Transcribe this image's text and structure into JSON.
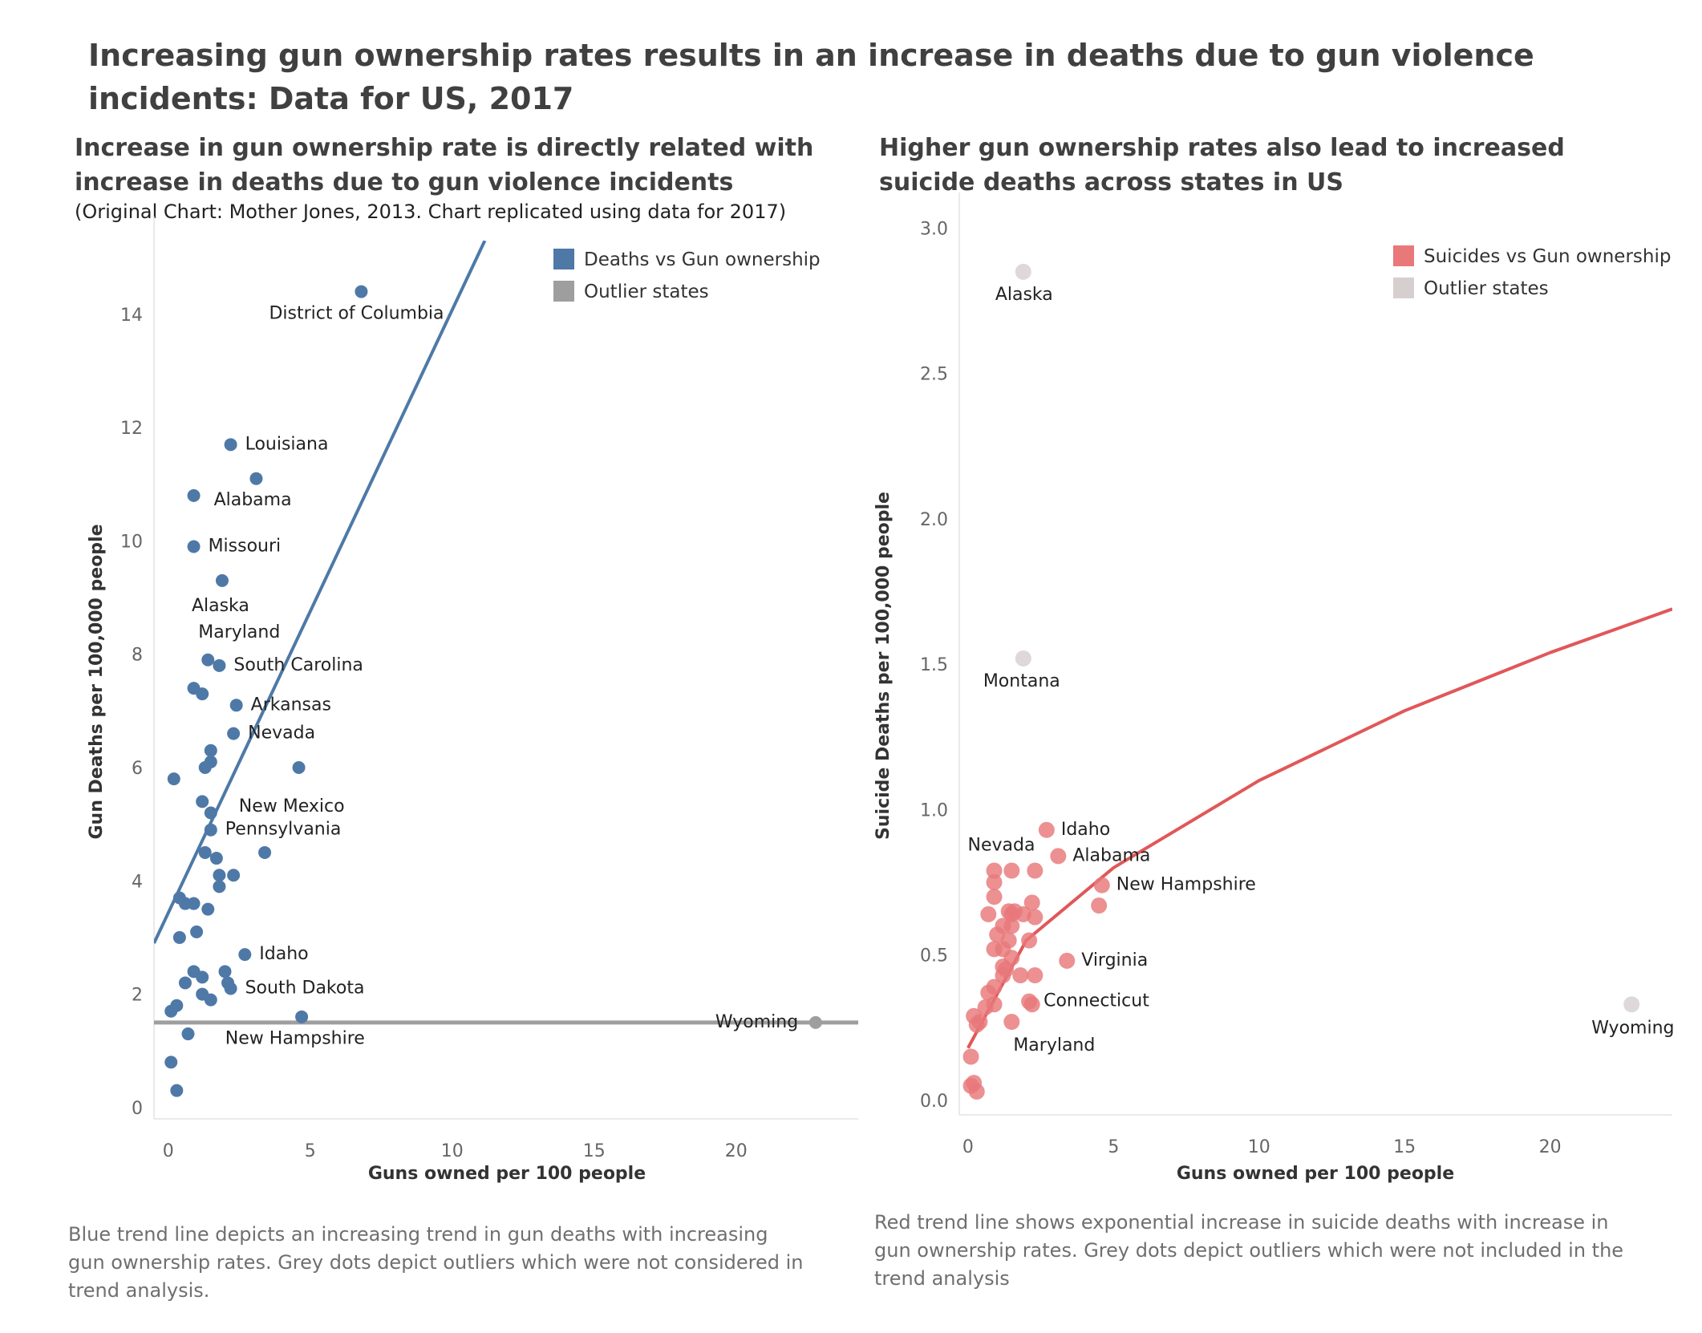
{
  "title": "Increasing gun ownership rates results in an increase in deaths due to gun violence incidents: Data for US, 2017",
  "colors": {
    "blue": "#4e79a7",
    "red": "#e15759",
    "red_point": "#e8787a",
    "grey": "#9e9e9e",
    "light_grey": "#d7cfcf"
  },
  "chart_data": [
    {
      "type": "scatter",
      "title": "Increase in gun ownership rate is directly related with increase in deaths due to gun violence incidents",
      "subtitle": "(Original Chart: Mother Jones, 2013. Chart replicated using data for 2017)",
      "xlabel": "Guns owned per 100 people",
      "ylabel": "Gun Deaths per 100,000 people",
      "xlim": [
        -0.5,
        24.3
      ],
      "ylim": [
        -0.2,
        15.3
      ],
      "xticks": [
        0,
        5,
        10,
        15,
        20
      ],
      "yticks": [
        0,
        2,
        4,
        6,
        8,
        10,
        12,
        14
      ],
      "legend": {
        "position": "top-right",
        "entries": [
          "Deaths vs Gun ownership",
          "Outlier states"
        ]
      },
      "caption": "Blue trend line depicts an increasing trend in gun deaths with increasing gun ownership rates. Grey dots depict outliers which were not considered in trend analysis.",
      "trend_lines": [
        {
          "series": "Deaths vs Gun ownership",
          "kind": "linear",
          "x": [
            -0.5,
            11.15
          ],
          "y": [
            2.9,
            15.3
          ]
        },
        {
          "series": "Outlier states",
          "kind": "flat",
          "x": [
            -0.5,
            24.3
          ],
          "y": [
            1.5,
            1.5
          ]
        }
      ],
      "series": [
        {
          "name": "Deaths vs Gun ownership",
          "points": [
            [
              6.8,
              14.4
            ],
            [
              2.2,
              11.7
            ],
            [
              3.1,
              11.1
            ],
            [
              0.9,
              10.8
            ],
            [
              0.9,
              9.9
            ],
            [
              1.9,
              9.3
            ],
            [
              1.4,
              7.9
            ],
            [
              1.8,
              7.8
            ],
            [
              0.9,
              7.4
            ],
            [
              1.2,
              7.3
            ],
            [
              2.4,
              7.1
            ],
            [
              2.3,
              6.6
            ],
            [
              1.5,
              6.3
            ],
            [
              1.5,
              6.1
            ],
            [
              1.3,
              6.0
            ],
            [
              4.6,
              6.0
            ],
            [
              0.2,
              5.8
            ],
            [
              1.2,
              5.4
            ],
            [
              1.5,
              5.2
            ],
            [
              1.5,
              4.9
            ],
            [
              3.4,
              4.5
            ],
            [
              1.3,
              4.5
            ],
            [
              1.7,
              4.4
            ],
            [
              1.8,
              4.1
            ],
            [
              2.3,
              4.1
            ],
            [
              1.8,
              3.9
            ],
            [
              0.4,
              3.7
            ],
            [
              0.6,
              3.6
            ],
            [
              0.9,
              3.6
            ],
            [
              1.4,
              3.5
            ],
            [
              1.0,
              3.1
            ],
            [
              0.4,
              3.0
            ],
            [
              2.7,
              2.7
            ],
            [
              0.9,
              2.4
            ],
            [
              1.2,
              2.3
            ],
            [
              2.0,
              2.4
            ],
            [
              0.6,
              2.2
            ],
            [
              2.1,
              2.2
            ],
            [
              2.2,
              2.1
            ],
            [
              1.2,
              2.0
            ],
            [
              1.5,
              1.9
            ],
            [
              0.3,
              1.8
            ],
            [
              0.1,
              1.7
            ],
            [
              4.7,
              1.6
            ],
            [
              0.7,
              1.3
            ],
            [
              0.1,
              0.8
            ],
            [
              0.3,
              0.3
            ]
          ],
          "labels": [
            {
              "text": "District of Columbia",
              "point": [
                6.8,
                14.4
              ]
            },
            {
              "text": "Louisiana",
              "point": [
                2.2,
                11.7
              ]
            },
            {
              "text": "Alabama",
              "point": [
                0.9,
                10.8
              ]
            },
            {
              "text": "Missouri",
              "point": [
                0.9,
                9.9
              ]
            },
            {
              "text": "Alaska",
              "point": [
                1.9,
                9.3
              ]
            },
            {
              "text": "Maryland",
              "point": [
                1.4,
                7.9
              ]
            },
            {
              "text": "South Carolina",
              "point": [
                1.8,
                7.8
              ]
            },
            {
              "text": "Arkansas",
              "point": [
                2.4,
                7.1
              ]
            },
            {
              "text": "Nevada",
              "point": [
                2.3,
                6.6
              ]
            },
            {
              "text": "New Mexico",
              "point": [
                1.5,
                6.1
              ]
            },
            {
              "text": "Pennsylvania",
              "point": [
                1.5,
                4.9
              ]
            },
            {
              "text": "Idaho",
              "point": [
                2.7,
                2.7
              ]
            },
            {
              "text": "South Dakota",
              "point": [
                2.2,
                2.1
              ]
            },
            {
              "text": "New Hampshire",
              "point": [
                1.5,
                1.9
              ]
            }
          ]
        },
        {
          "name": "Outlier states",
          "points": [
            [
              22.8,
              1.5
            ]
          ],
          "labels": [
            {
              "text": "Wyoming",
              "point": [
                22.8,
                1.5
              ]
            }
          ]
        }
      ]
    },
    {
      "type": "scatter",
      "title": "Higher gun ownership rates also lead to increased suicide deaths across states  in US",
      "xlabel": "Guns owned per 100 people",
      "ylabel": "Suicide Deaths per 100,000 people",
      "xlim": [
        -0.3,
        24.2
      ],
      "ylim": [
        -0.05,
        3.04
      ],
      "xticks": [
        0,
        5,
        10,
        15,
        20
      ],
      "yticks": [
        "0.0",
        "0.5",
        "1.0",
        "1.5",
        "2.0",
        "2.5",
        "3.0"
      ],
      "legend": {
        "position": "top-right",
        "entries": [
          "Suicides vs Gun ownership",
          "Outlier states"
        ]
      },
      "caption": "Red trend line shows exponential increase in suicide deaths with increase in gun ownership rates. Grey dots depict outliers which were not included in the trend analysis",
      "trend_line": {
        "series": "Suicides vs Gun ownership",
        "kind": "power",
        "x": [
          0,
          2,
          5,
          10,
          15,
          20,
          24.2
        ],
        "y": [
          0.18,
          0.55,
          0.8,
          1.1,
          1.34,
          1.54,
          1.69
        ]
      },
      "series": [
        {
          "name": "Suicides vs Gun ownership",
          "points": [
            [
              2.7,
              0.93
            ],
            [
              3.1,
              0.84
            ],
            [
              0.9,
              0.79
            ],
            [
              1.5,
              0.79
            ],
            [
              2.3,
              0.79
            ],
            [
              4.6,
              0.74
            ],
            [
              0.9,
              0.75
            ],
            [
              0.9,
              0.7
            ],
            [
              2.2,
              0.68
            ],
            [
              4.5,
              0.67
            ],
            [
              1.4,
              0.65
            ],
            [
              1.6,
              0.65
            ],
            [
              0.7,
              0.64
            ],
            [
              1.5,
              0.64
            ],
            [
              1.9,
              0.64
            ],
            [
              2.3,
              0.63
            ],
            [
              1.2,
              0.6
            ],
            [
              1.5,
              0.6
            ],
            [
              1.0,
              0.57
            ],
            [
              1.4,
              0.55
            ],
            [
              2.1,
              0.55
            ],
            [
              1.2,
              0.52
            ],
            [
              0.9,
              0.52
            ],
            [
              1.5,
              0.49
            ],
            [
              3.4,
              0.48
            ],
            [
              1.2,
              0.46
            ],
            [
              1.3,
              0.45
            ],
            [
              1.2,
              0.43
            ],
            [
              1.8,
              0.43
            ],
            [
              2.3,
              0.43
            ],
            [
              0.9,
              0.39
            ],
            [
              0.7,
              0.37
            ],
            [
              2.1,
              0.34
            ],
            [
              2.2,
              0.33
            ],
            [
              0.9,
              0.33
            ],
            [
              0.6,
              0.32
            ],
            [
              0.2,
              0.29
            ],
            [
              0.4,
              0.27
            ],
            [
              0.3,
              0.26
            ],
            [
              1.5,
              0.27
            ],
            [
              0.1,
              0.15
            ],
            [
              0.1,
              0.05
            ],
            [
              0.2,
              0.06
            ],
            [
              0.3,
              0.03
            ]
          ],
          "labels": [
            {
              "text": "Idaho",
              "point": [
                2.7,
                0.93
              ]
            },
            {
              "text": "Nevada",
              "point": [
                0.9,
                0.79
              ]
            },
            {
              "text": "Alabama",
              "point": [
                3.1,
                0.84
              ]
            },
            {
              "text": "New Hampshire",
              "point": [
                4.6,
                0.74
              ]
            },
            {
              "text": "Virginia",
              "point": [
                3.4,
                0.48
              ]
            },
            {
              "text": "Connecticut",
              "point": [
                2.1,
                0.34
              ]
            },
            {
              "text": "Maryland",
              "point": [
                1.5,
                0.27
              ]
            }
          ]
        },
        {
          "name": "Outlier states",
          "points": [
            [
              1.9,
              2.85
            ],
            [
              1.9,
              1.52
            ],
            [
              22.8,
              0.33
            ]
          ],
          "labels": [
            {
              "text": "Alaska",
              "point": [
                1.9,
                2.85
              ]
            },
            {
              "text": "Montana",
              "point": [
                1.9,
                1.52
              ]
            },
            {
              "text": "Wyoming",
              "point": [
                22.8,
                0.33
              ]
            }
          ]
        }
      ]
    }
  ]
}
